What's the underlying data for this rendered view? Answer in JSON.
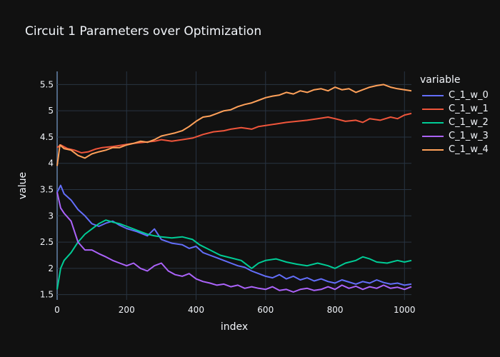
{
  "chart_data": {
    "type": "line",
    "title": "Circuit 1 Parameters over Optimization",
    "xlabel": "index",
    "ylabel": "value",
    "xlim": [
      0,
      1020
    ],
    "ylim": [
      1.4,
      5.75
    ],
    "xticks": [
      0,
      200,
      400,
      600,
      800,
      1000
    ],
    "xtick_labels": [
      "0",
      "200",
      "400",
      "600",
      "800",
      "1000"
    ],
    "yticks": [
      1.5,
      2,
      2.5,
      3,
      3.5,
      4,
      4.5,
      5,
      5.5
    ],
    "ytick_labels": [
      "1.5",
      "2",
      "2.5",
      "3",
      "3.5",
      "4",
      "4.5",
      "5",
      "5.5"
    ],
    "legend_title": "variable",
    "legend_position": "right",
    "grid": true,
    "series": [
      {
        "name": "C_1_w_0",
        "color": "#636efa",
        "points": [
          [
            0,
            3.45
          ],
          [
            10,
            3.58
          ],
          [
            20,
            3.42
          ],
          [
            40,
            3.3
          ],
          [
            60,
            3.12
          ],
          [
            80,
            3.0
          ],
          [
            100,
            2.85
          ],
          [
            120,
            2.8
          ],
          [
            140,
            2.86
          ],
          [
            160,
            2.9
          ],
          [
            180,
            2.82
          ],
          [
            200,
            2.76
          ],
          [
            230,
            2.7
          ],
          [
            260,
            2.62
          ],
          [
            280,
            2.75
          ],
          [
            300,
            2.55
          ],
          [
            330,
            2.48
          ],
          [
            360,
            2.45
          ],
          [
            380,
            2.38
          ],
          [
            400,
            2.42
          ],
          [
            420,
            2.3
          ],
          [
            440,
            2.25
          ],
          [
            460,
            2.2
          ],
          [
            480,
            2.15
          ],
          [
            500,
            2.1
          ],
          [
            520,
            2.05
          ],
          [
            540,
            2.02
          ],
          [
            560,
            1.95
          ],
          [
            580,
            1.9
          ],
          [
            600,
            1.85
          ],
          [
            620,
            1.82
          ],
          [
            640,
            1.88
          ],
          [
            660,
            1.8
          ],
          [
            680,
            1.85
          ],
          [
            700,
            1.78
          ],
          [
            720,
            1.82
          ],
          [
            740,
            1.76
          ],
          [
            760,
            1.8
          ],
          [
            780,
            1.75
          ],
          [
            800,
            1.72
          ],
          [
            820,
            1.78
          ],
          [
            840,
            1.74
          ],
          [
            860,
            1.7
          ],
          [
            880,
            1.75
          ],
          [
            900,
            1.72
          ],
          [
            920,
            1.78
          ],
          [
            940,
            1.73
          ],
          [
            960,
            1.7
          ],
          [
            980,
            1.72
          ],
          [
            1000,
            1.68
          ],
          [
            1020,
            1.7
          ]
        ]
      },
      {
        "name": "C_1_w_1",
        "color": "#ef553b",
        "points": [
          [
            0,
            4.3
          ],
          [
            10,
            4.35
          ],
          [
            30,
            4.28
          ],
          [
            50,
            4.25
          ],
          [
            70,
            4.2
          ],
          [
            90,
            4.22
          ],
          [
            110,
            4.27
          ],
          [
            130,
            4.3
          ],
          [
            160,
            4.32
          ],
          [
            190,
            4.35
          ],
          [
            220,
            4.38
          ],
          [
            250,
            4.4
          ],
          [
            280,
            4.42
          ],
          [
            300,
            4.45
          ],
          [
            330,
            4.42
          ],
          [
            360,
            4.45
          ],
          [
            390,
            4.48
          ],
          [
            420,
            4.55
          ],
          [
            450,
            4.6
          ],
          [
            480,
            4.62
          ],
          [
            500,
            4.65
          ],
          [
            530,
            4.68
          ],
          [
            560,
            4.65
          ],
          [
            580,
            4.7
          ],
          [
            600,
            4.72
          ],
          [
            630,
            4.75
          ],
          [
            660,
            4.78
          ],
          [
            690,
            4.8
          ],
          [
            720,
            4.82
          ],
          [
            750,
            4.85
          ],
          [
            780,
            4.88
          ],
          [
            800,
            4.85
          ],
          [
            830,
            4.8
          ],
          [
            860,
            4.82
          ],
          [
            880,
            4.78
          ],
          [
            900,
            4.85
          ],
          [
            930,
            4.82
          ],
          [
            960,
            4.88
          ],
          [
            980,
            4.85
          ],
          [
            1000,
            4.92
          ],
          [
            1020,
            4.95
          ]
        ]
      },
      {
        "name": "C_1_w_2",
        "color": "#00cc96",
        "points": [
          [
            0,
            1.6
          ],
          [
            10,
            2.0
          ],
          [
            20,
            2.15
          ],
          [
            40,
            2.3
          ],
          [
            60,
            2.5
          ],
          [
            80,
            2.65
          ],
          [
            100,
            2.75
          ],
          [
            120,
            2.85
          ],
          [
            140,
            2.92
          ],
          [
            160,
            2.88
          ],
          [
            180,
            2.85
          ],
          [
            200,
            2.8
          ],
          [
            220,
            2.75
          ],
          [
            240,
            2.7
          ],
          [
            260,
            2.65
          ],
          [
            280,
            2.62
          ],
          [
            300,
            2.6
          ],
          [
            330,
            2.58
          ],
          [
            360,
            2.6
          ],
          [
            390,
            2.55
          ],
          [
            410,
            2.45
          ],
          [
            440,
            2.35
          ],
          [
            470,
            2.25
          ],
          [
            500,
            2.2
          ],
          [
            530,
            2.15
          ],
          [
            560,
            2.0
          ],
          [
            580,
            2.1
          ],
          [
            600,
            2.15
          ],
          [
            630,
            2.18
          ],
          [
            660,
            2.12
          ],
          [
            690,
            2.08
          ],
          [
            720,
            2.05
          ],
          [
            750,
            2.1
          ],
          [
            780,
            2.05
          ],
          [
            800,
            2.0
          ],
          [
            830,
            2.1
          ],
          [
            860,
            2.15
          ],
          [
            880,
            2.22
          ],
          [
            900,
            2.18
          ],
          [
            920,
            2.12
          ],
          [
            950,
            2.1
          ],
          [
            980,
            2.15
          ],
          [
            1000,
            2.12
          ],
          [
            1020,
            2.15
          ]
        ]
      },
      {
        "name": "C_1_w_3",
        "color": "#ab63fa",
        "points": [
          [
            0,
            3.45
          ],
          [
            10,
            3.15
          ],
          [
            20,
            3.05
          ],
          [
            40,
            2.9
          ],
          [
            60,
            2.5
          ],
          [
            80,
            2.35
          ],
          [
            100,
            2.35
          ],
          [
            120,
            2.28
          ],
          [
            140,
            2.22
          ],
          [
            160,
            2.15
          ],
          [
            180,
            2.1
          ],
          [
            200,
            2.05
          ],
          [
            220,
            2.1
          ],
          [
            240,
            2.0
          ],
          [
            260,
            1.95
          ],
          [
            280,
            2.05
          ],
          [
            300,
            2.1
          ],
          [
            320,
            1.95
          ],
          [
            340,
            1.88
          ],
          [
            360,
            1.85
          ],
          [
            380,
            1.9
          ],
          [
            400,
            1.8
          ],
          [
            420,
            1.75
          ],
          [
            440,
            1.72
          ],
          [
            460,
            1.68
          ],
          [
            480,
            1.7
          ],
          [
            500,
            1.65
          ],
          [
            520,
            1.68
          ],
          [
            540,
            1.62
          ],
          [
            560,
            1.65
          ],
          [
            580,
            1.62
          ],
          [
            600,
            1.6
          ],
          [
            620,
            1.65
          ],
          [
            640,
            1.58
          ],
          [
            660,
            1.6
          ],
          [
            680,
            1.55
          ],
          [
            700,
            1.6
          ],
          [
            720,
            1.62
          ],
          [
            740,
            1.58
          ],
          [
            760,
            1.6
          ],
          [
            780,
            1.65
          ],
          [
            800,
            1.6
          ],
          [
            820,
            1.68
          ],
          [
            840,
            1.62
          ],
          [
            860,
            1.66
          ],
          [
            880,
            1.6
          ],
          [
            900,
            1.65
          ],
          [
            920,
            1.62
          ],
          [
            940,
            1.68
          ],
          [
            960,
            1.62
          ],
          [
            980,
            1.64
          ],
          [
            1000,
            1.6
          ],
          [
            1020,
            1.65
          ]
        ]
      },
      {
        "name": "C_1_w_4",
        "color": "#ffa15a",
        "points": [
          [
            0,
            3.95
          ],
          [
            8,
            4.35
          ],
          [
            20,
            4.28
          ],
          [
            40,
            4.25
          ],
          [
            60,
            4.15
          ],
          [
            80,
            4.1
          ],
          [
            100,
            4.18
          ],
          [
            120,
            4.22
          ],
          [
            140,
            4.25
          ],
          [
            160,
            4.3
          ],
          [
            180,
            4.3
          ],
          [
            200,
            4.35
          ],
          [
            220,
            4.38
          ],
          [
            240,
            4.42
          ],
          [
            260,
            4.4
          ],
          [
            280,
            4.45
          ],
          [
            300,
            4.52
          ],
          [
            320,
            4.55
          ],
          [
            340,
            4.58
          ],
          [
            360,
            4.62
          ],
          [
            380,
            4.7
          ],
          [
            400,
            4.8
          ],
          [
            420,
            4.88
          ],
          [
            440,
            4.9
          ],
          [
            460,
            4.95
          ],
          [
            480,
            5.0
          ],
          [
            500,
            5.02
          ],
          [
            520,
            5.08
          ],
          [
            540,
            5.12
          ],
          [
            560,
            5.15
          ],
          [
            580,
            5.2
          ],
          [
            600,
            5.25
          ],
          [
            620,
            5.28
          ],
          [
            640,
            5.3
          ],
          [
            660,
            5.35
          ],
          [
            680,
            5.32
          ],
          [
            700,
            5.38
          ],
          [
            720,
            5.35
          ],
          [
            740,
            5.4
          ],
          [
            760,
            5.42
          ],
          [
            780,
            5.38
          ],
          [
            800,
            5.45
          ],
          [
            820,
            5.4
          ],
          [
            840,
            5.42
          ],
          [
            860,
            5.35
          ],
          [
            880,
            5.4
          ],
          [
            900,
            5.45
          ],
          [
            920,
            5.48
          ],
          [
            940,
            5.5
          ],
          [
            960,
            5.45
          ],
          [
            980,
            5.42
          ],
          [
            1000,
            5.4
          ],
          [
            1020,
            5.38
          ]
        ]
      }
    ]
  }
}
